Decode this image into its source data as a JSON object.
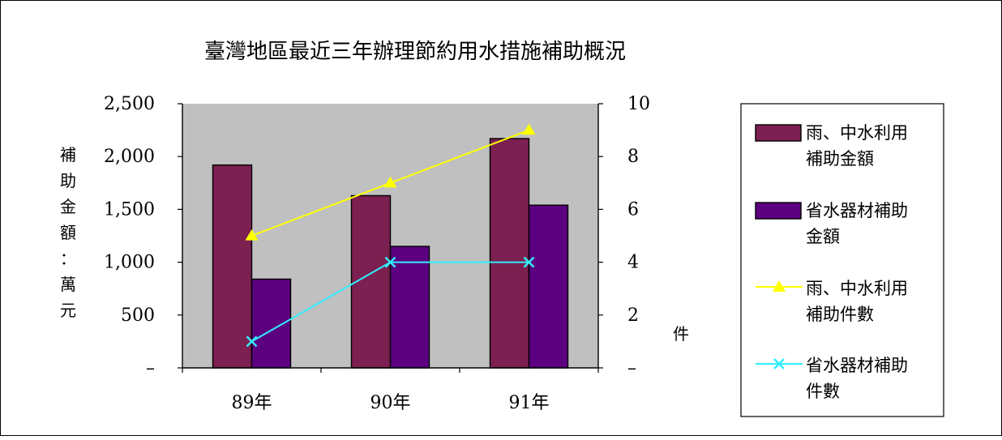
{
  "chart_data": {
    "type": "bar",
    "title": "臺灣地區最近三年辦理節約用水措施補助概況",
    "categories": [
      "89年",
      "90年",
      "91年"
    ],
    "ylabel_left": [
      "補",
      "助",
      "金",
      "額",
      "：",
      "萬",
      "元"
    ],
    "ylabel_right": "件",
    "left_axis": {
      "ticks": [
        0,
        500,
        1000,
        1500,
        2000,
        2500
      ],
      "tick_labels": [
        "–",
        "500",
        "1,000",
        "1,500",
        "2,000",
        "2,500"
      ],
      "ylim": [
        0,
        2500
      ]
    },
    "right_axis": {
      "ticks": [
        0,
        2,
        4,
        6,
        8,
        10
      ],
      "tick_labels": [
        "–",
        "2",
        "4",
        "6",
        "8",
        "10"
      ],
      "ylim": [
        0,
        10
      ]
    },
    "bar_series": [
      {
        "name": "雨、中水利用補助金額",
        "values": [
          1920,
          1630,
          2170
        ],
        "color": "#7B2050"
      },
      {
        "name": "省水器材補助金額",
        "values": [
          840,
          1150,
          1540
        ],
        "color": "#5C0080"
      }
    ],
    "line_series": [
      {
        "name": "雨、中水利用補助件數",
        "values": [
          5,
          7,
          9
        ],
        "color": "#FFFF00",
        "marker": "triangle"
      },
      {
        "name": "省水器材補助件數",
        "values": [
          1,
          4,
          4
        ],
        "color": "#33EEFF",
        "marker": "x"
      }
    ],
    "legend": {
      "position": "right",
      "entries": [
        {
          "lines": [
            "雨、中水利用",
            "補助金額"
          ]
        },
        {
          "lines": [
            "省水器材補助",
            "金額"
          ]
        },
        {
          "lines": [
            "雨、中水利用",
            "補助件數"
          ]
        },
        {
          "lines": [
            "省水器材補助",
            "件數"
          ]
        }
      ]
    },
    "plot_background": "#C0C0C0",
    "grid": false
  }
}
